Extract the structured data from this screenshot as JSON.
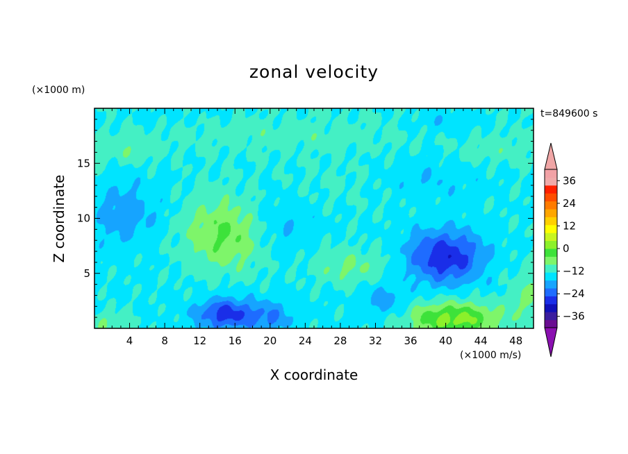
{
  "chart_data": {
    "type": "heatmap",
    "title": "zonal velocity",
    "xlabel": "X coordinate",
    "ylabel": "Z coordinate",
    "x_unit_label": "(×1000 m/s)",
    "y_unit_label": "(×1000 m)",
    "time_label": "t=849600 s",
    "xlim": [
      0,
      50
    ],
    "ylim": [
      0,
      20
    ],
    "x_ticks": [
      4,
      8,
      12,
      16,
      20,
      24,
      28,
      32,
      36,
      40,
      44,
      48
    ],
    "y_ticks": [
      5,
      10,
      15
    ],
    "colorbar": {
      "min": -42,
      "max": 42,
      "interval": 6,
      "tick_values": [
        36,
        24,
        12,
        0,
        -12,
        -24,
        -36
      ],
      "tick_labels": [
        "36",
        "24",
        "12",
        "0",
        "−12",
        "−24",
        "−36"
      ],
      "colors": [
        "#6a0d91",
        "#3a1d9e",
        "#1010b8",
        "#1a2ee8",
        "#1e6cff",
        "#16a4ff",
        "#00e4ff",
        "#44f0c4",
        "#7ef56a",
        "#3de23a",
        "#8cf02a",
        "#c8f51f",
        "#ffff00",
        "#ffd000",
        "#ffa600",
        "#ff7b00",
        "#ff4d00",
        "#ff2000",
        "#f0aaaa",
        "#f2a2a6"
      ],
      "over_color": "#f0a6a6",
      "under_color": "#8a10b0"
    },
    "blobs": [
      {
        "x": 15,
        "z": 8.5,
        "amp": 14,
        "sx": 4.6,
        "sz": 3.2
      },
      {
        "x": 29,
        "z": 5.6,
        "amp": 8,
        "sx": 4.5,
        "sz": 1.6
      },
      {
        "x": 41,
        "z": 0.8,
        "amp": 22,
        "sx": 5.2,
        "sz": 1.6
      },
      {
        "x": 49.5,
        "z": 3,
        "amp": 8,
        "sx": 2.2,
        "sz": 2.6
      },
      {
        "x": 2,
        "z": 0.3,
        "amp": 8,
        "sx": 2.2,
        "sz": 1.3
      },
      {
        "x": 40,
        "z": 6.5,
        "amp": -22,
        "sx": 4.2,
        "sz": 2.4
      },
      {
        "x": 15,
        "z": 1.3,
        "amp": -20,
        "sx": 3.2,
        "sz": 1.4
      },
      {
        "x": 20,
        "z": 1.0,
        "amp": -10,
        "sx": 2.5,
        "sz": 1.5
      },
      {
        "x": 33,
        "z": 2.5,
        "amp": -8,
        "sx": 2.5,
        "sz": 1.5
      },
      {
        "x": 3.5,
        "z": 10.5,
        "amp": -9,
        "sx": 4,
        "sz": 3
      },
      {
        "x": 21,
        "z": 9.5,
        "amp": -6,
        "sx": 4,
        "sz": 3
      },
      {
        "x": 38,
        "z": 13.5,
        "amp": -5,
        "sx": 6,
        "sz": 2
      },
      {
        "x": 28,
        "z": 13,
        "amp": 2,
        "sx": 8,
        "sz": 2
      },
      {
        "x": 22,
        "z": 17.5,
        "amp": 3.5,
        "sx": 14,
        "sz": 1.4
      },
      {
        "x": 3,
        "z": 16.2,
        "amp": 5,
        "sx": 4,
        "sz": 1.2
      },
      {
        "x": 46,
        "z": 16.2,
        "amp": 4,
        "sx": 5,
        "sz": 1.2
      },
      {
        "x": 40,
        "z": 18.8,
        "amp": -5,
        "sx": 3.5,
        "sz": 1.3
      },
      {
        "x": 8,
        "z": 19.5,
        "amp": -2,
        "sx": 6,
        "sz": 1
      }
    ]
  }
}
